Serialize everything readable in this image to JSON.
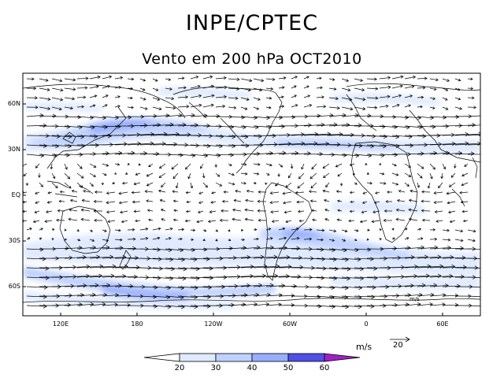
{
  "header": {
    "title": "INPE/CPTEC",
    "subtitle": "Vento em 200 hPa OCT2010"
  },
  "map": {
    "lat_labels": [
      "60N",
      "30N",
      "EQ",
      "30S",
      "60S"
    ],
    "lon_labels": [
      "120E",
      "180",
      "120W",
      "60W",
      "0",
      "60E"
    ],
    "inset_units": "m/s"
  },
  "legend": {
    "units": "m/s",
    "reference_vector": "20",
    "ticks": [
      "20",
      "30",
      "40",
      "50",
      "60"
    ],
    "colors": [
      "#ffffff",
      "#dfeaff",
      "#bfd1ff",
      "#97aeff",
      "#7181f4",
      "#5050e6",
      "#a020c8"
    ]
  }
}
